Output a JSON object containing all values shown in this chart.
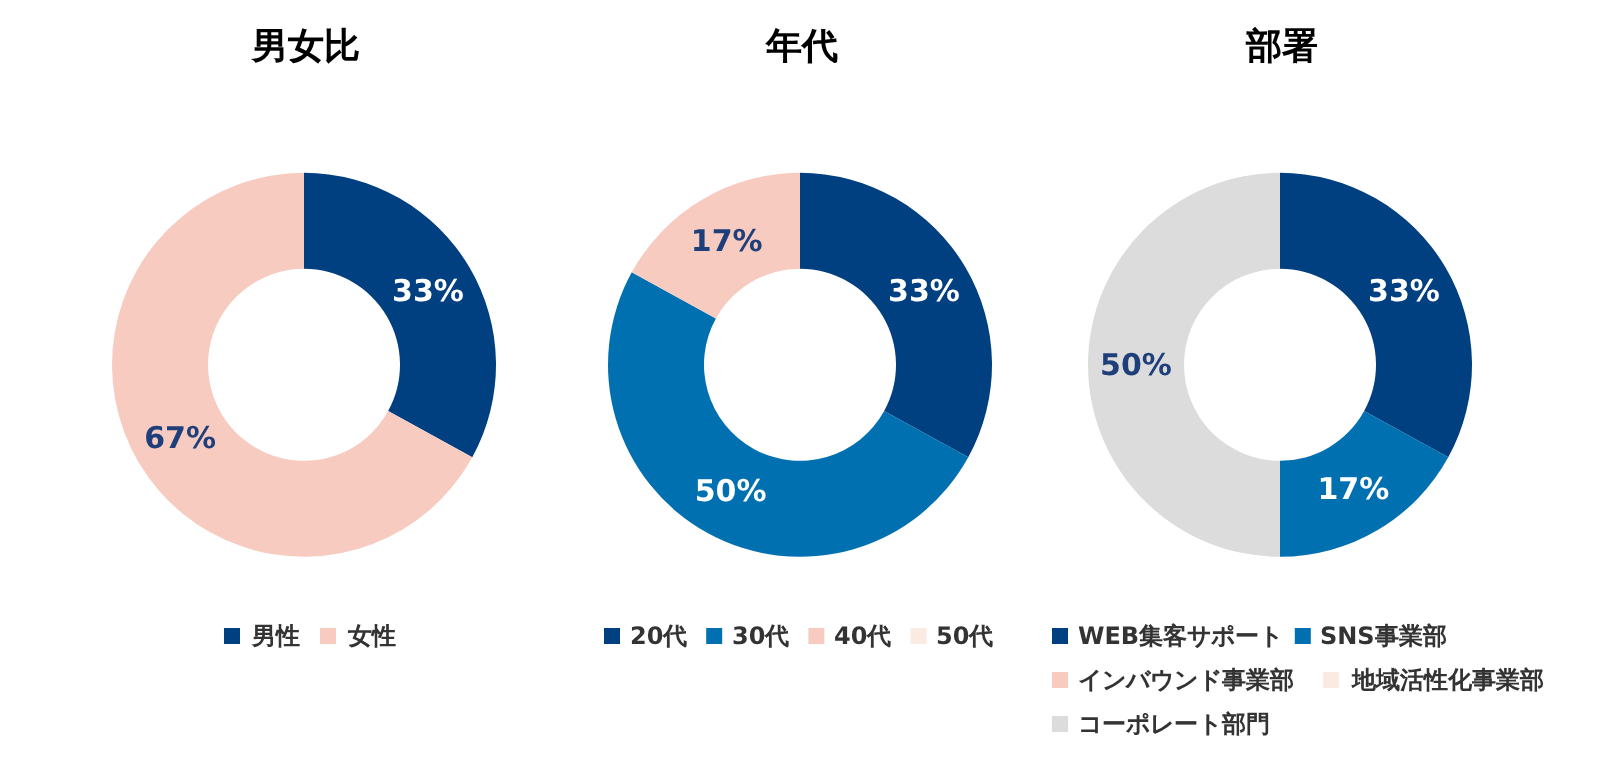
{
  "chart_data": [
    {
      "type": "donut",
      "title": "男女比",
      "categories": [
        "男性",
        "女性"
      ],
      "values": [
        33,
        67
      ],
      "colors": [
        "#003f80",
        "#f8cbc0"
      ],
      "value_labels": [
        "33%",
        "67%"
      ],
      "legend": "bottom"
    },
    {
      "type": "donut",
      "title": "年代",
      "categories": [
        "20代",
        "30代",
        "40代",
        "50代"
      ],
      "values": [
        33,
        50,
        17,
        0
      ],
      "colors": [
        "#003f80",
        "#0070b0",
        "#f8cbc0",
        "#fbeae2"
      ],
      "value_labels": [
        "33%",
        "50%",
        "17%",
        null
      ],
      "legend": "bottom"
    },
    {
      "type": "donut",
      "title": "部署",
      "categories": [
        "WEB集客サポート",
        "SNS事業部",
        "インバウンド事業部",
        "地域活性化事業部",
        "コーポレート部門"
      ],
      "values": [
        33,
        17,
        0,
        0,
        50
      ],
      "colors": [
        "#003f80",
        "#0070b0",
        "#f8cbc0",
        "#fbeae2",
        "#dcdcdc"
      ],
      "value_labels": [
        "33%",
        "17%",
        null,
        null,
        "50%"
      ],
      "legend": "bottom"
    }
  ]
}
